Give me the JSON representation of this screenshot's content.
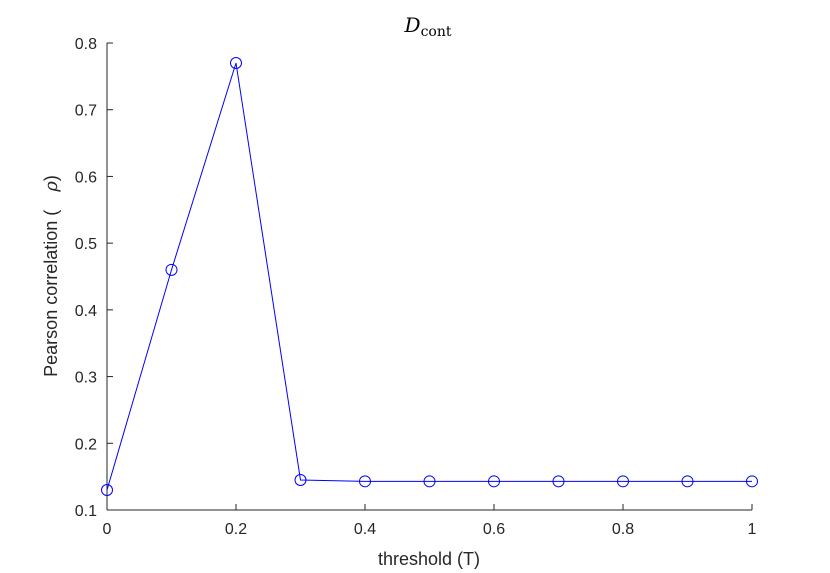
{
  "chart_data": {
    "type": "line",
    "title": "D",
    "title_subscript": "cont",
    "xlabel": "threshold (T)",
    "ylabel_text": "Pearson correlation (",
    "ylabel_symbol": "ρ",
    "ylabel_close": ")",
    "xlim": [
      0,
      1
    ],
    "ylim": [
      0.1,
      0.8
    ],
    "xticks": [
      0,
      0.2,
      0.4,
      0.6,
      0.8,
      1
    ],
    "xtick_labels": [
      "0",
      "0.2",
      "0.4",
      "0.6",
      "0.8",
      "1"
    ],
    "yticks": [
      0.1,
      0.2,
      0.3,
      0.4,
      0.5,
      0.6,
      0.7,
      0.8
    ],
    "ytick_labels": [
      "0.1",
      "0.2",
      "0.3",
      "0.4",
      "0.5",
      "0.6",
      "0.7",
      "0.8"
    ],
    "grid": false,
    "series": [
      {
        "color": "#0000ff",
        "marker": "circle",
        "x": [
          0,
          0.1,
          0.2,
          0.3,
          0.4,
          0.5,
          0.6,
          0.7,
          0.8,
          0.9,
          1.0
        ],
        "y": [
          0.13,
          0.46,
          0.77,
          0.145,
          0.143,
          0.143,
          0.143,
          0.143,
          0.143,
          0.143,
          0.143
        ]
      }
    ]
  }
}
